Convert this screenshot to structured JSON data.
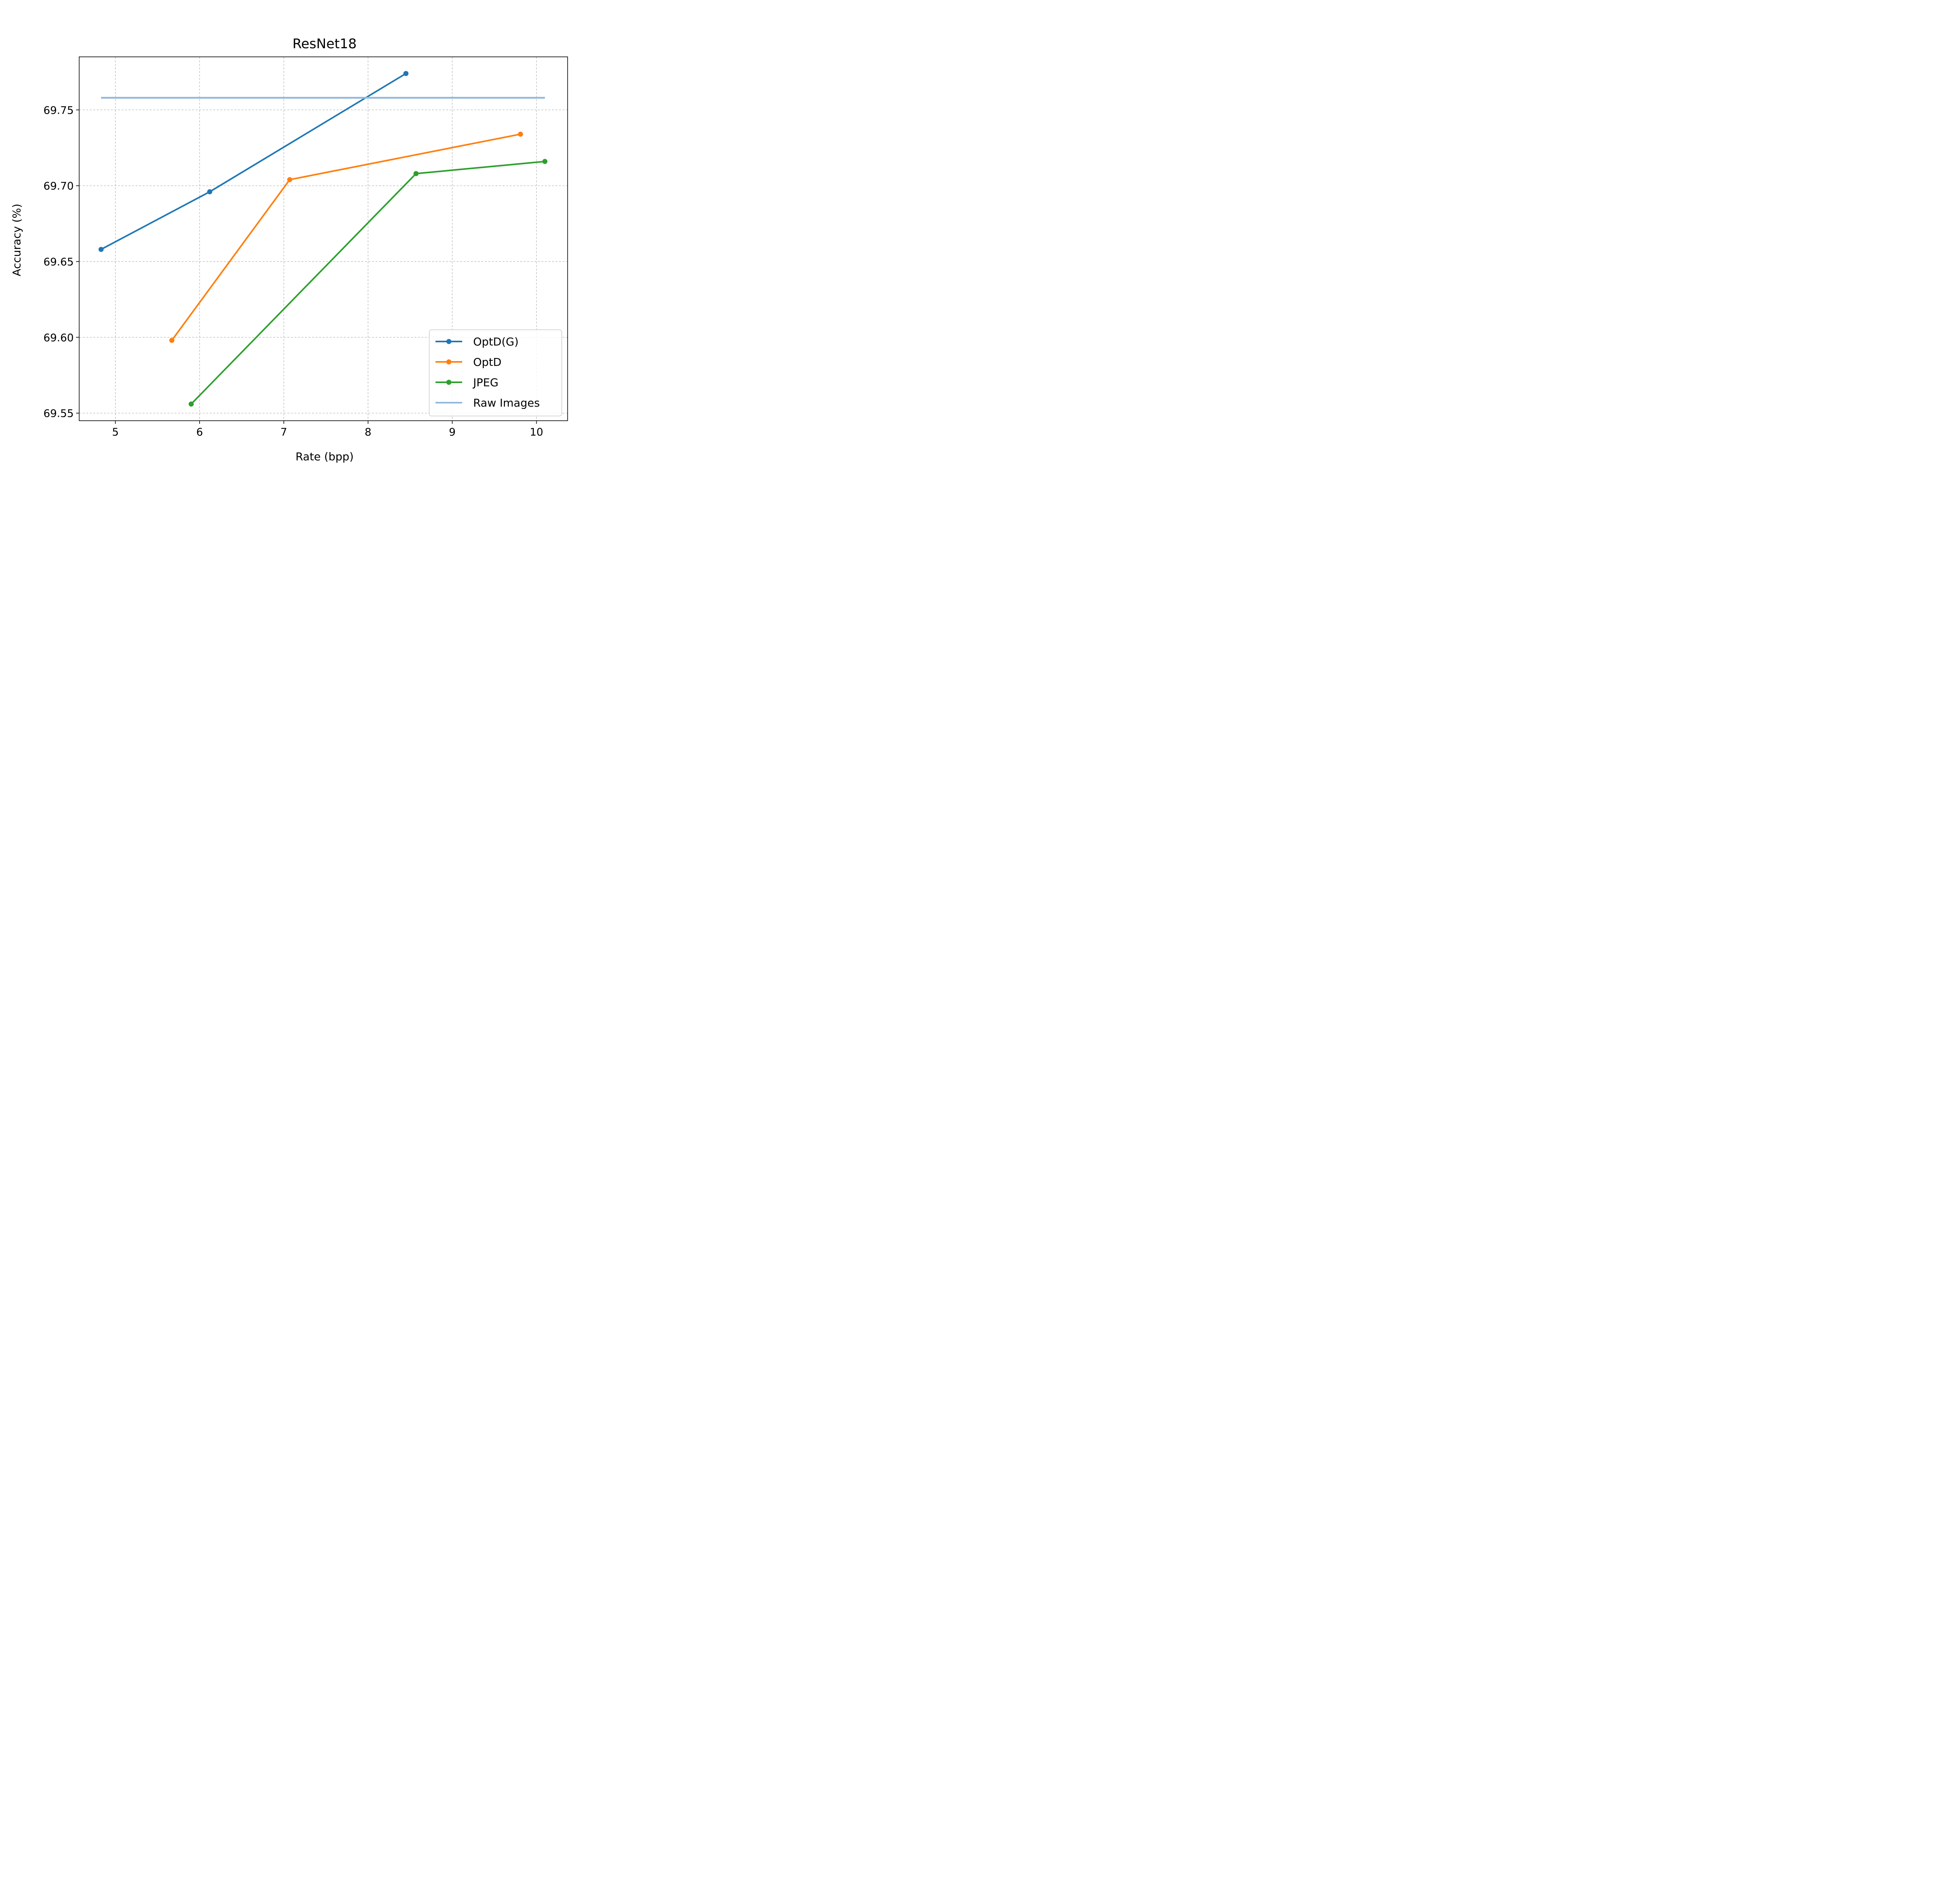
{
  "chart_data": {
    "type": "line",
    "title": "ResNet18",
    "xlabel": "Rate (bpp)",
    "ylabel": "Accuracy (%)",
    "xlim": [
      4.57,
      10.37
    ],
    "ylim": [
      69.545,
      69.785
    ],
    "xticks": [
      5,
      6,
      7,
      8,
      9,
      10
    ],
    "xtick_labels": [
      "5",
      "6",
      "7",
      "8",
      "9",
      "10"
    ],
    "yticks": [
      69.55,
      69.6,
      69.65,
      69.7,
      69.75
    ],
    "ytick_labels": [
      "69.55",
      "69.60",
      "69.65",
      "69.70",
      "69.75"
    ],
    "grid": true,
    "legend_position": "lower right",
    "series": [
      {
        "name": "OptD(G)",
        "color": "#1f77b4",
        "marker": true,
        "x": [
          4.83,
          6.12,
          8.45
        ],
        "y": [
          69.658,
          69.696,
          69.774
        ]
      },
      {
        "name": "OptD",
        "color": "#ff7f0e",
        "marker": true,
        "x": [
          5.67,
          7.07,
          9.81
        ],
        "y": [
          69.598,
          69.704,
          69.734
        ]
      },
      {
        "name": "JPEG",
        "color": "#2ca02c",
        "marker": true,
        "x": [
          5.9,
          8.57,
          10.1
        ],
        "y": [
          69.556,
          69.708,
          69.716
        ]
      },
      {
        "name": "Raw Images",
        "color": "#8fb8da",
        "marker": false,
        "x": [
          4.83,
          10.1
        ],
        "y": [
          69.758,
          69.758
        ]
      }
    ]
  }
}
